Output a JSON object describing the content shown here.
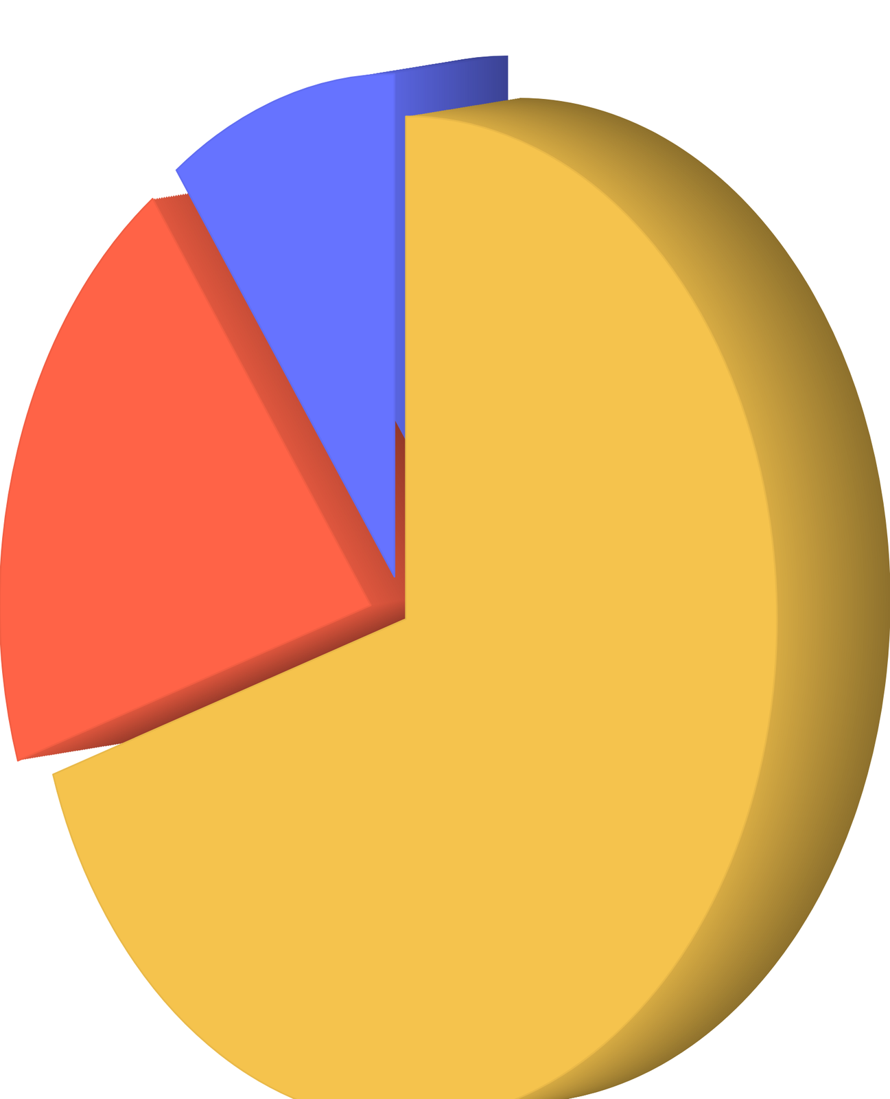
{
  "chart_data": {
    "type": "pie",
    "values": [
      70,
      20,
      10
    ],
    "colors": [
      "#f5c34d",
      "#ff6347",
      "#6673ff"
    ]
  }
}
